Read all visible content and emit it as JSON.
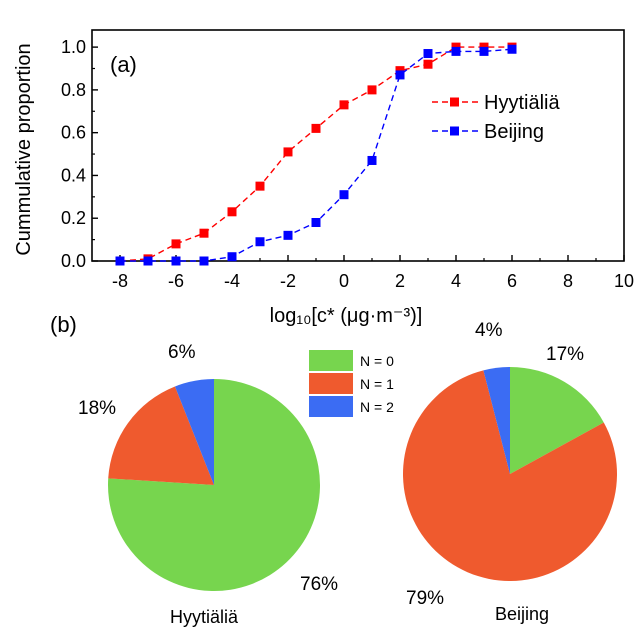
{
  "chart_data": [
    {
      "type": "line",
      "panel": "(a)",
      "xlabel": "log₁₀[c* (μg·m⁻³)]",
      "ylabel": "Cummulative proportion",
      "xlim": [
        -9,
        10
      ],
      "ylim": [
        0,
        1.08
      ],
      "x_ticks": [
        -8,
        -6,
        -4,
        -2,
        0,
        2,
        4,
        6,
        8,
        10
      ],
      "y_ticks": [
        0.0,
        0.2,
        0.4,
        0.6,
        0.8,
        1.0
      ],
      "x_tick_labels": [
        "-8",
        "-6",
        "-4",
        "-2",
        "0",
        "2",
        "4",
        "6",
        "8",
        "10"
      ],
      "y_tick_labels": [
        "0.0",
        "0.2",
        "0.4",
        "0.6",
        "0.8",
        "1.0"
      ],
      "legend_position": "right",
      "grid": false,
      "series": [
        {
          "name": "Hyytiäliä",
          "color": "#ff0000",
          "line_style": "dashed",
          "marker": "square",
          "x": [
            -8,
            -7,
            -6,
            -5,
            -4,
            -3,
            -2,
            -1,
            0,
            1,
            2,
            3,
            4,
            5,
            6
          ],
          "y": [
            0.0,
            0.01,
            0.08,
            0.13,
            0.23,
            0.35,
            0.51,
            0.62,
            0.73,
            0.8,
            0.89,
            0.92,
            1.0,
            1.0,
            1.0
          ]
        },
        {
          "name": "Beijing",
          "color": "#0000ff",
          "line_style": "dashed",
          "marker": "square",
          "x": [
            -8,
            -7,
            -6,
            -5,
            -4,
            -3,
            -2,
            -1,
            0,
            1,
            2,
            3,
            4,
            5,
            6
          ],
          "y": [
            0.0,
            0.0,
            0.0,
            0.0,
            0.02,
            0.09,
            0.12,
            0.18,
            0.31,
            0.47,
            0.87,
            0.97,
            0.98,
            0.98,
            0.99
          ]
        }
      ]
    },
    {
      "type": "pie",
      "panel": "(b)",
      "name": "Hyytiäliä",
      "slices": [
        {
          "label": "N = 0",
          "value": 76,
          "pct_text": "76%",
          "color": "#77d54e"
        },
        {
          "label": "N = 1",
          "value": 18,
          "pct_text": "18%",
          "color": "#ef5a2e"
        },
        {
          "label": "N = 2",
          "value": 6,
          "pct_text": "6%",
          "color": "#3b6cf3"
        }
      ]
    },
    {
      "type": "pie",
      "panel": "(b)",
      "name": "Beijing",
      "slices": [
        {
          "label": "N = 0",
          "value": 17,
          "pct_text": "17%",
          "color": "#77d54e"
        },
        {
          "label": "N = 1",
          "value": 79,
          "pct_text": "79%",
          "color": "#ef5a2e"
        },
        {
          "label": "N = 2",
          "value": 4,
          "pct_text": "4%",
          "color": "#3b6cf3"
        }
      ]
    }
  ],
  "pie_legend": [
    {
      "label": "N = 0",
      "color": "#77d54e"
    },
    {
      "label": "N = 1",
      "color": "#ef5a2e"
    },
    {
      "label": "N = 2",
      "color": "#3b6cf3"
    }
  ],
  "panel_b_label": "(b)"
}
